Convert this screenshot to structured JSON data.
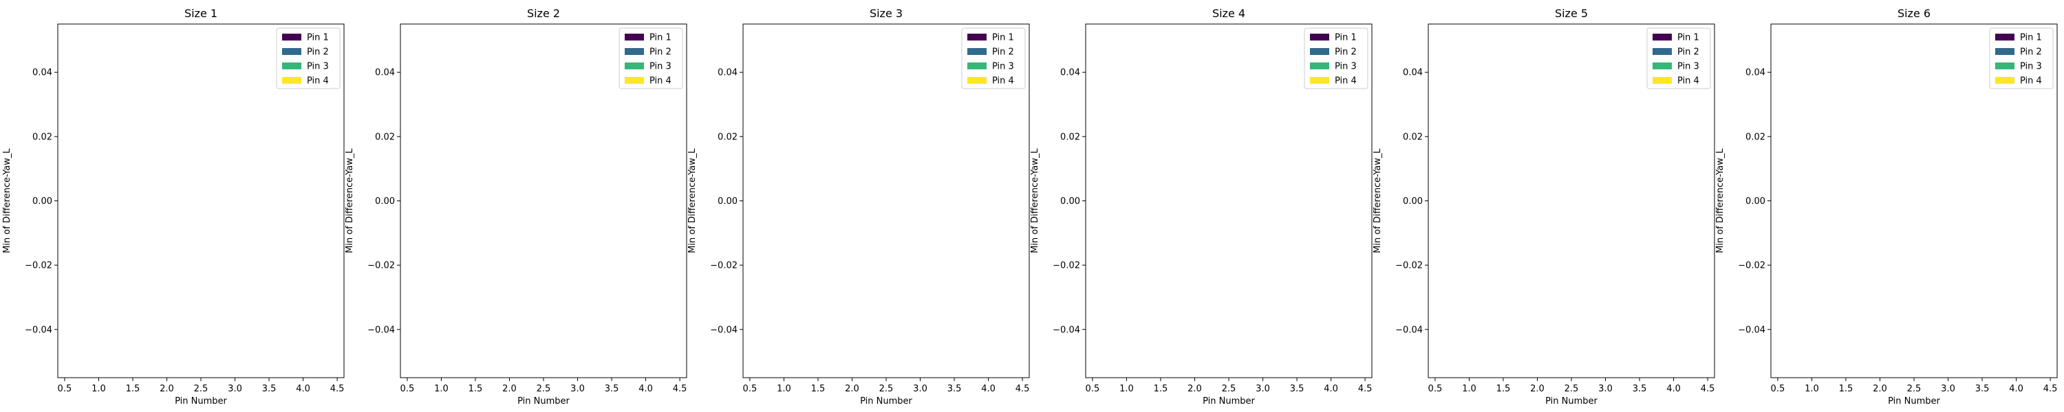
{
  "chart_data": [
    {
      "type": "bar",
      "title": "Size 1",
      "xlabel": "Pin Number",
      "ylabel": "Min of Difference-Yaw_L",
      "xlim": [
        0.4,
        4.6
      ],
      "ylim": [
        -0.055,
        0.055
      ],
      "xticks": [
        "0.5",
        "1.0",
        "1.5",
        "2.0",
        "2.5",
        "3.0",
        "3.5",
        "4.0",
        "4.5"
      ],
      "yticks": [
        "−0.04",
        "−0.02",
        "0.00",
        "0.02",
        "0.04"
      ],
      "grid": false,
      "legend_position": "top-right",
      "series": [
        {
          "name": "Pin 1",
          "color": "#440154",
          "values": []
        },
        {
          "name": "Pin 2",
          "color": "#31688e",
          "values": []
        },
        {
          "name": "Pin 3",
          "color": "#35b779",
          "values": []
        },
        {
          "name": "Pin 4",
          "color": "#fde725",
          "values": []
        }
      ]
    },
    {
      "type": "bar",
      "title": "Size 2",
      "xlabel": "Pin Number",
      "ylabel": "Min of Difference-Yaw_L",
      "xlim": [
        0.4,
        4.6
      ],
      "ylim": [
        -0.055,
        0.055
      ],
      "xticks": [
        "0.5",
        "1.0",
        "1.5",
        "2.0",
        "2.5",
        "3.0",
        "3.5",
        "4.0",
        "4.5"
      ],
      "yticks": [
        "−0.04",
        "−0.02",
        "0.00",
        "0.02",
        "0.04"
      ],
      "grid": false,
      "legend_position": "top-right",
      "series": [
        {
          "name": "Pin 1",
          "color": "#440154",
          "values": []
        },
        {
          "name": "Pin 2",
          "color": "#31688e",
          "values": []
        },
        {
          "name": "Pin 3",
          "color": "#35b779",
          "values": []
        },
        {
          "name": "Pin 4",
          "color": "#fde725",
          "values": []
        }
      ]
    },
    {
      "type": "bar",
      "title": "Size 3",
      "xlabel": "Pin Number",
      "ylabel": "Min of Difference-Yaw_L",
      "xlim": [
        0.4,
        4.6
      ],
      "ylim": [
        -0.055,
        0.055
      ],
      "xticks": [
        "0.5",
        "1.0",
        "1.5",
        "2.0",
        "2.5",
        "3.0",
        "3.5",
        "4.0",
        "4.5"
      ],
      "yticks": [
        "−0.04",
        "−0.02",
        "0.00",
        "0.02",
        "0.04"
      ],
      "grid": false,
      "legend_position": "top-right",
      "series": [
        {
          "name": "Pin 1",
          "color": "#440154",
          "values": []
        },
        {
          "name": "Pin 2",
          "color": "#31688e",
          "values": []
        },
        {
          "name": "Pin 3",
          "color": "#35b779",
          "values": []
        },
        {
          "name": "Pin 4",
          "color": "#fde725",
          "values": []
        }
      ]
    },
    {
      "type": "bar",
      "title": "Size 4",
      "xlabel": "Pin Number",
      "ylabel": "Min of Difference-Yaw_L",
      "xlim": [
        0.4,
        4.6
      ],
      "ylim": [
        -0.055,
        0.055
      ],
      "xticks": [
        "0.5",
        "1.0",
        "1.5",
        "2.0",
        "2.5",
        "3.0",
        "3.5",
        "4.0",
        "4.5"
      ],
      "yticks": [
        "−0.04",
        "−0.02",
        "0.00",
        "0.02",
        "0.04"
      ],
      "grid": false,
      "legend_position": "top-right",
      "series": [
        {
          "name": "Pin 1",
          "color": "#440154",
          "values": []
        },
        {
          "name": "Pin 2",
          "color": "#31688e",
          "values": []
        },
        {
          "name": "Pin 3",
          "color": "#35b779",
          "values": []
        },
        {
          "name": "Pin 4",
          "color": "#fde725",
          "values": []
        }
      ]
    },
    {
      "type": "bar",
      "title": "Size 5",
      "xlabel": "Pin Number",
      "ylabel": "Min of Difference-Yaw_L",
      "xlim": [
        0.4,
        4.6
      ],
      "ylim": [
        -0.055,
        0.055
      ],
      "xticks": [
        "0.5",
        "1.0",
        "1.5",
        "2.0",
        "2.5",
        "3.0",
        "3.5",
        "4.0",
        "4.5"
      ],
      "yticks": [
        "−0.04",
        "−0.02",
        "0.00",
        "0.02",
        "0.04"
      ],
      "grid": false,
      "legend_position": "top-right",
      "series": [
        {
          "name": "Pin 1",
          "color": "#440154",
          "values": []
        },
        {
          "name": "Pin 2",
          "color": "#31688e",
          "values": []
        },
        {
          "name": "Pin 3",
          "color": "#35b779",
          "values": []
        },
        {
          "name": "Pin 4",
          "color": "#fde725",
          "values": []
        }
      ]
    },
    {
      "type": "bar",
      "title": "Size 6",
      "xlabel": "Pin Number",
      "ylabel": "Min of Difference-Yaw_L",
      "xlim": [
        0.4,
        4.6
      ],
      "ylim": [
        -0.055,
        0.055
      ],
      "xticks": [
        "0.5",
        "1.0",
        "1.5",
        "2.0",
        "2.5",
        "3.0",
        "3.5",
        "4.0",
        "4.5"
      ],
      "yticks": [
        "−0.04",
        "−0.02",
        "0.00",
        "0.02",
        "0.04"
      ],
      "grid": false,
      "legend_position": "top-right",
      "series": [
        {
          "name": "Pin 1",
          "color": "#440154",
          "values": []
        },
        {
          "name": "Pin 2",
          "color": "#31688e",
          "values": []
        },
        {
          "name": "Pin 3",
          "color": "#35b779",
          "values": []
        },
        {
          "name": "Pin 4",
          "color": "#fde725",
          "values": []
        }
      ]
    }
  ]
}
